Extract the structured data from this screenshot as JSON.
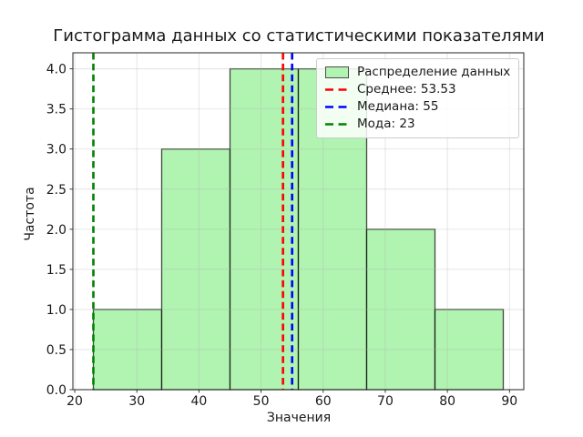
{
  "chart_data": {
    "type": "bar",
    "title": "Гистограмма данных со статистическими показателями",
    "xlabel": "Значения",
    "ylabel": "Частота",
    "bin_edges": [
      23,
      34,
      45,
      56,
      67,
      78,
      89
    ],
    "frequencies": [
      1,
      3,
      4,
      4,
      2,
      1
    ],
    "xlim": [
      19.7,
      92.3
    ],
    "ylim": [
      0,
      4.2
    ],
    "xticks": [
      20,
      30,
      40,
      50,
      60,
      70,
      80,
      90
    ],
    "xtick_labels": [
      "20",
      "30",
      "40",
      "50",
      "60",
      "70",
      "80",
      "90"
    ],
    "yticks": [
      0,
      0.5,
      1,
      1.5,
      2,
      2.5,
      3,
      3.5,
      4
    ],
    "ytick_labels": [
      "0.0",
      "0.5",
      "1.0",
      "1.5",
      "2.0",
      "2.5",
      "3.0",
      "3.5",
      "4.0"
    ],
    "grid": true,
    "legend_position": "upper right",
    "style": {
      "bar_fill": "#90ee90",
      "bar_alpha": 0.7,
      "bar_edge": "rgba(0,0,0,0.7)",
      "grid_color": "#b0b0b0",
      "spine_color": "#262626",
      "text_color": "#1a1a1a"
    },
    "stat_lines": [
      {
        "name": "mean",
        "value": 53.53,
        "color": "#ff0000",
        "label": "Среднее: 53.53"
      },
      {
        "name": "median",
        "value": 55,
        "color": "#0000ff",
        "label": "Медиана: 55"
      },
      {
        "name": "mode",
        "value": 23,
        "color": "#008000",
        "label": "Мода: 23"
      }
    ],
    "legend_entries": [
      {
        "type": "patch",
        "label": "Распределение данных",
        "color": "#b1f3b1",
        "edge": "#4d4d4d"
      },
      {
        "type": "dashed-line",
        "label": "Среднее: 53.53",
        "color": "#ff0000"
      },
      {
        "type": "dashed-line",
        "label": "Медиана: 55",
        "color": "#0000ff"
      },
      {
        "type": "dashed-line",
        "label": "Мода: 23",
        "color": "#008000"
      }
    ]
  }
}
